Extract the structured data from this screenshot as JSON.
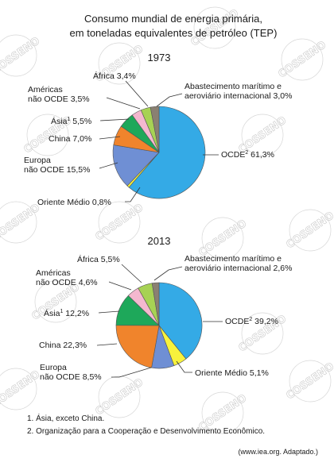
{
  "title_line1": "Consumo mundial de energia primária,",
  "title_line2": "em toneladas equivalentes de petróleo (TEP)",
  "watermark": "COSSENO",
  "footnote1": "1. Ásia, exceto China.",
  "footnote2": "2. Organização para a Cooperação e Desenvolvimento Econômico.",
  "source": "(www.iea.org. Adaptado.)",
  "colors": {
    "ocde": "#34aae6",
    "oriente": "#f7f23c",
    "europa": "#6f8fd4",
    "china": "#f0842c",
    "asia": "#1ea85a",
    "americas": "#f4b8cf",
    "africa": "#a7d254",
    "abastecimento": "#8a8072"
  },
  "chart_data": [
    {
      "type": "pie",
      "title": "1973",
      "slices": [
        {
          "key": "ocde",
          "label": "OCDE",
          "sup": "2",
          "value": 61.3,
          "value_text": "61,3%"
        },
        {
          "key": "oriente",
          "label": "Oriente Médio",
          "value": 0.8,
          "value_text": "0,8%"
        },
        {
          "key": "europa",
          "label": "Europa não OCDE",
          "value": 15.5,
          "value_text": "15,5%"
        },
        {
          "key": "china",
          "label": "China",
          "value": 7.0,
          "value_text": "7,0%"
        },
        {
          "key": "asia",
          "label": "Ásia",
          "sup": "1",
          "value": 5.5,
          "value_text": "5,5%"
        },
        {
          "key": "americas",
          "label": "Américas não OCDE",
          "value": 3.5,
          "value_text": "3,5%"
        },
        {
          "key": "africa",
          "label": "África",
          "value": 3.4,
          "value_text": "3,4%"
        },
        {
          "key": "abastecimento",
          "label": "Abastecimento marítimo e aeroviário internacional",
          "value": 3.0,
          "value_text": "3,0%"
        }
      ]
    },
    {
      "type": "pie",
      "title": "2013",
      "slices": [
        {
          "key": "ocde",
          "label": "OCDE",
          "sup": "2",
          "value": 39.2,
          "value_text": "39,2%"
        },
        {
          "key": "oriente",
          "label": "Oriente Médio",
          "value": 5.1,
          "value_text": "5,1%"
        },
        {
          "key": "europa",
          "label": "Europa não OCDE",
          "value": 8.5,
          "value_text": "8,5%"
        },
        {
          "key": "china",
          "label": "China",
          "value": 22.3,
          "value_text": "22,3%"
        },
        {
          "key": "asia",
          "label": "Ásia",
          "sup": "1",
          "value": 12.2,
          "value_text": "12,2%"
        },
        {
          "key": "americas",
          "label": "Américas não OCDE",
          "value": 4.6,
          "value_text": "4,6%"
        },
        {
          "key": "africa",
          "label": "África",
          "value": 5.5,
          "value_text": "5,5%"
        },
        {
          "key": "abastecimento",
          "label": "Abastecimento marítimo e aeroviário internacional",
          "value": 2.6,
          "value_text": "2,6%"
        }
      ]
    }
  ]
}
